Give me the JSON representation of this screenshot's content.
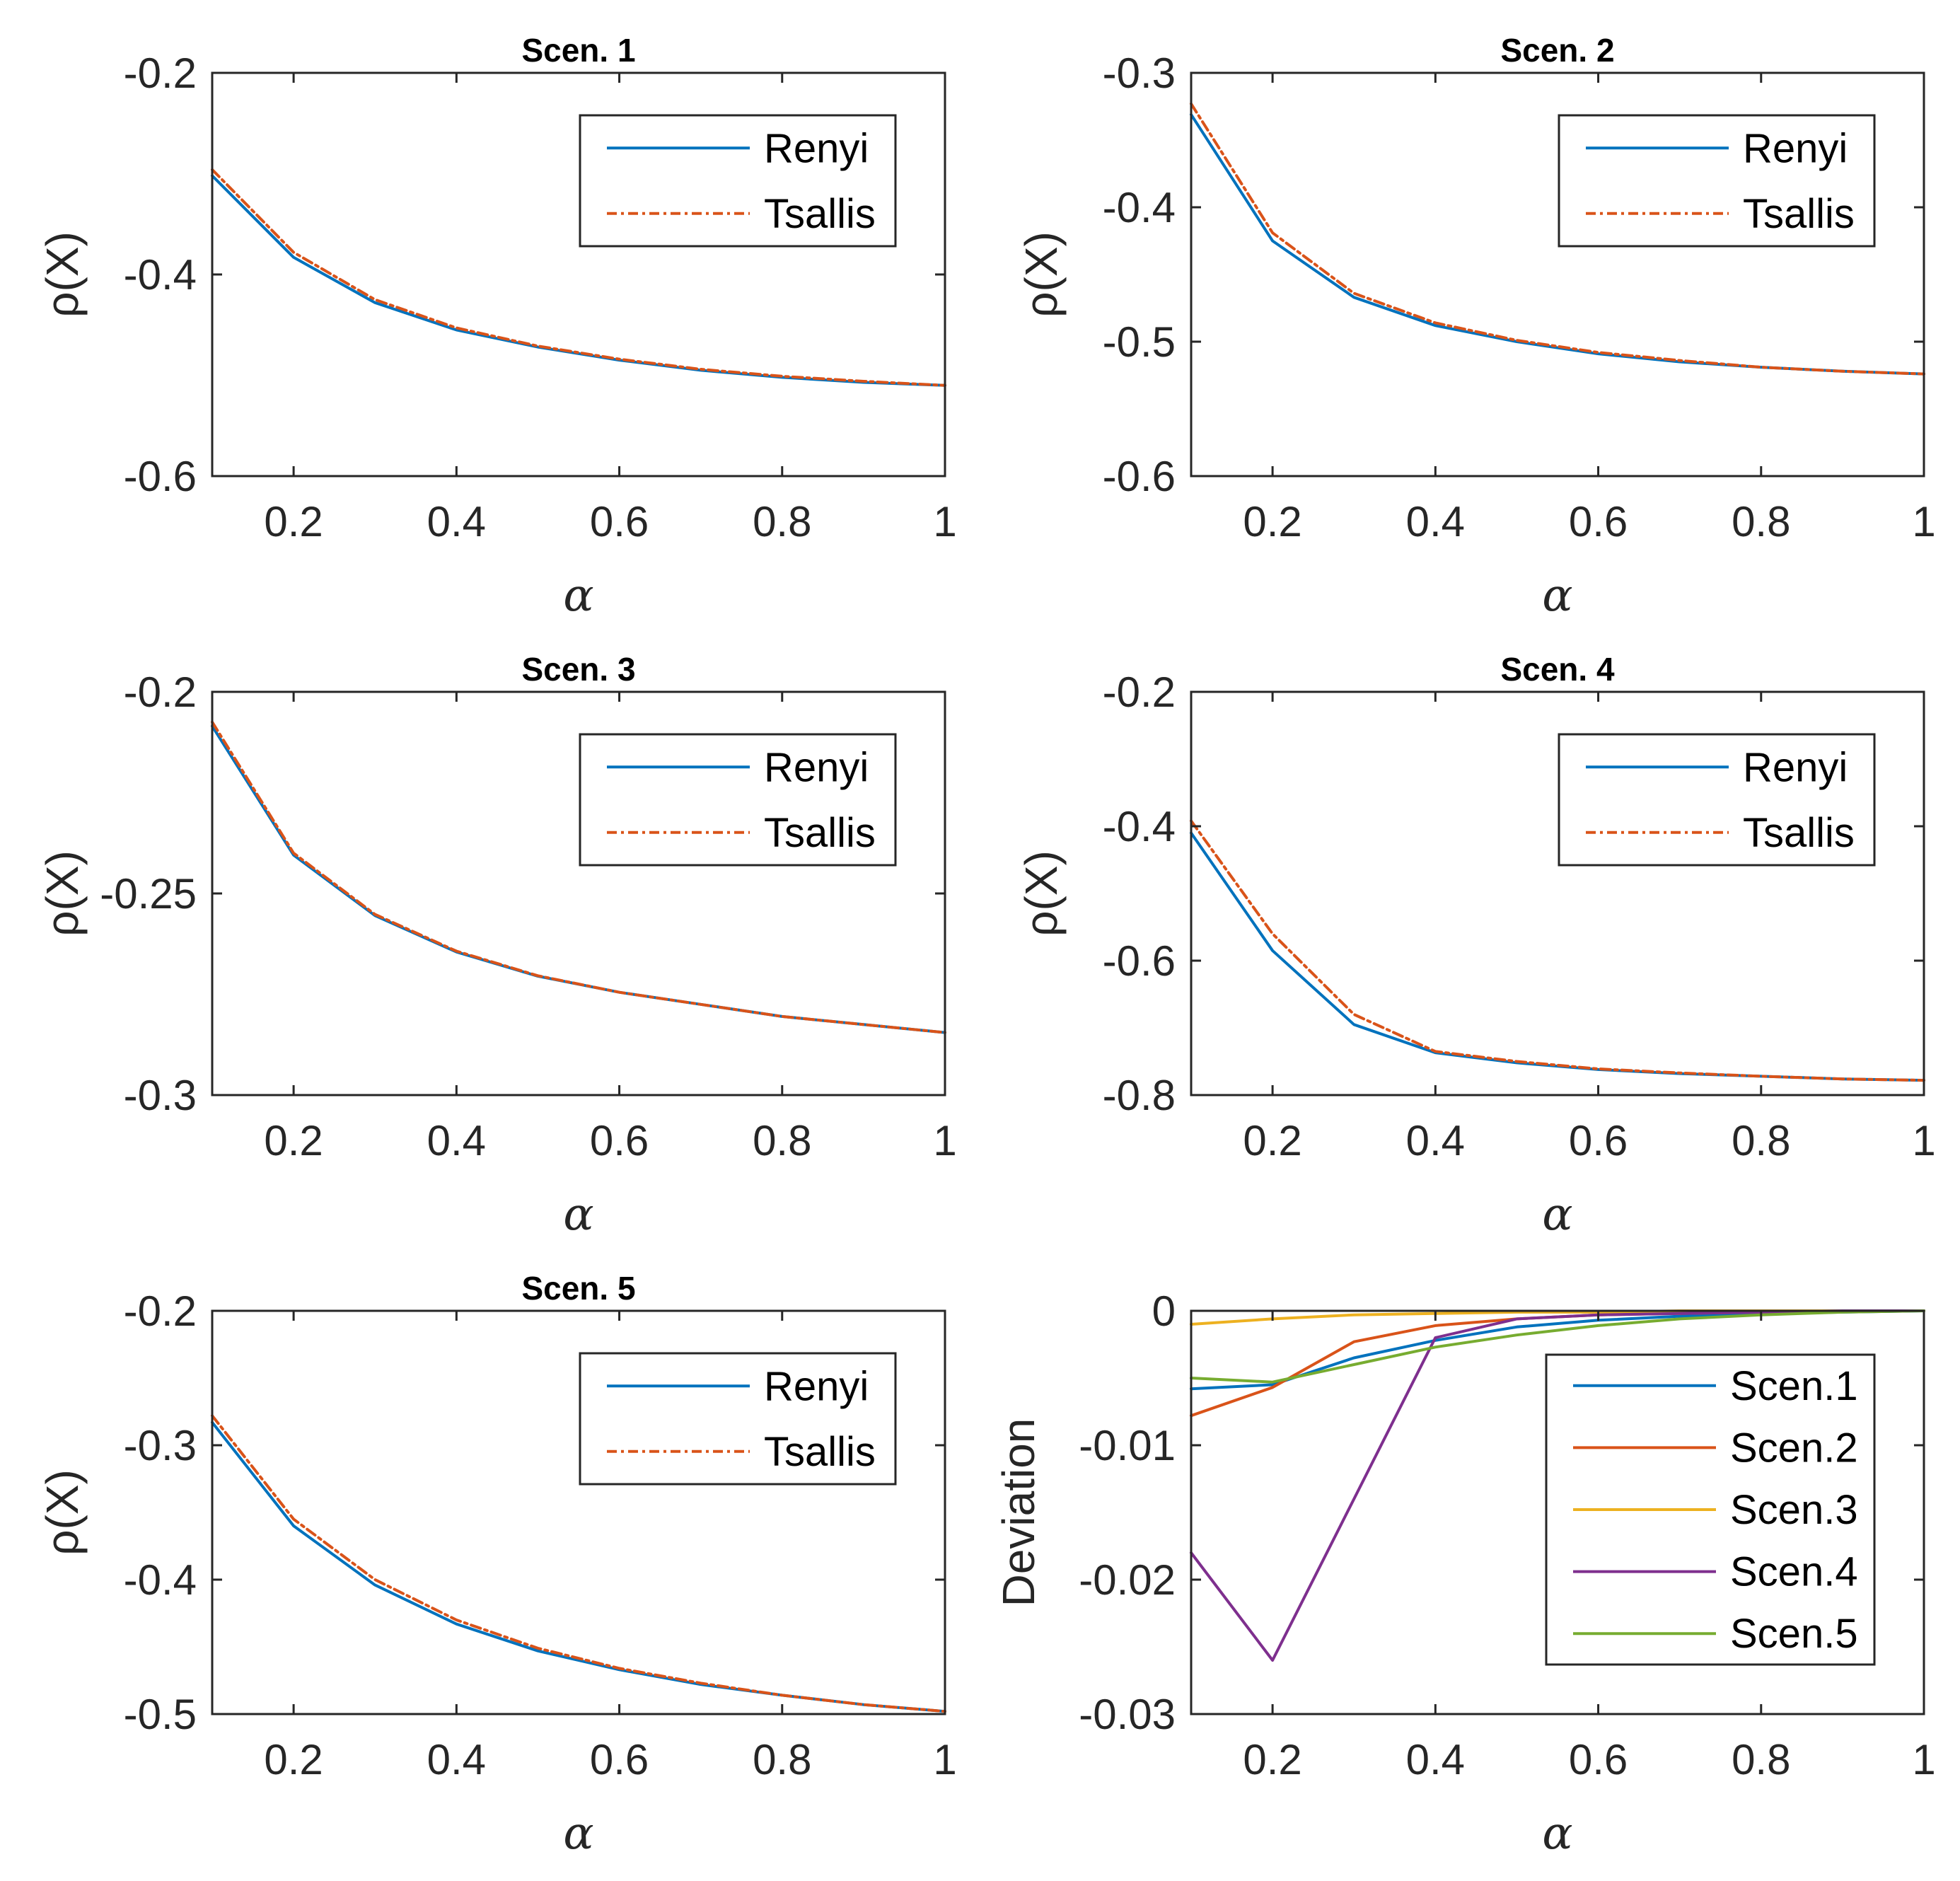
{
  "chart_data": [
    {
      "type": "line",
      "title": "Scen. 1",
      "xlabel": "α",
      "ylabel": "ρ(X)",
      "x": [
        0.1,
        0.2,
        0.3,
        0.4,
        0.5,
        0.6,
        0.7,
        0.8,
        0.9,
        1.0
      ],
      "xlim": [
        0.1,
        1
      ],
      "ylim": [
        -0.6,
        -0.2
      ],
      "xticks": [
        "0.2",
        "0.4",
        "0.6",
        "0.8",
        "1"
      ],
      "yticks": [
        "-0.2",
        "-0.4",
        "-0.6"
      ],
      "legend_position": "top-right",
      "series": [
        {
          "name": "Renyi",
          "color": "#0072BD",
          "style": "solid",
          "values": [
            -0.302,
            -0.383,
            -0.428,
            -0.455,
            -0.472,
            -0.485,
            -0.495,
            -0.502,
            -0.507,
            -0.51
          ]
        },
        {
          "name": "Tsallis",
          "color": "#D95319",
          "style": "dashdot",
          "values": [
            -0.296,
            -0.378,
            -0.425,
            -0.453,
            -0.471,
            -0.484,
            -0.494,
            -0.501,
            -0.506,
            -0.51
          ]
        }
      ]
    },
    {
      "type": "line",
      "title": "Scen. 2",
      "xlabel": "α",
      "ylabel": "ρ(X)",
      "x": [
        0.1,
        0.2,
        0.3,
        0.4,
        0.5,
        0.6,
        0.7,
        0.8,
        0.9,
        1.0
      ],
      "xlim": [
        0.1,
        1
      ],
      "ylim": [
        -0.6,
        -0.3
      ],
      "xticks": [
        "0.2",
        "0.4",
        "0.6",
        "0.8",
        "1"
      ],
      "yticks": [
        "-0.3",
        "-0.4",
        "-0.5",
        "-0.6"
      ],
      "legend_position": "top-right",
      "series": [
        {
          "name": "Renyi",
          "color": "#0072BD",
          "style": "solid",
          "values": [
            -0.331,
            -0.425,
            -0.467,
            -0.488,
            -0.5,
            -0.509,
            -0.515,
            -0.519,
            -0.522,
            -0.524
          ]
        },
        {
          "name": "Tsallis",
          "color": "#D95319",
          "style": "dashdot",
          "values": [
            -0.323,
            -0.419,
            -0.464,
            -0.486,
            -0.499,
            -0.508,
            -0.514,
            -0.519,
            -0.522,
            -0.524
          ]
        }
      ]
    },
    {
      "type": "line",
      "title": "Scen. 3",
      "xlabel": "α",
      "ylabel": "ρ(X)",
      "x": [
        0.1,
        0.2,
        0.3,
        0.4,
        0.5,
        0.6,
        0.7,
        0.8,
        0.9,
        1.0
      ],
      "xlim": [
        0.1,
        1
      ],
      "ylim": [
        -0.3,
        -0.2
      ],
      "xticks": [
        "0.2",
        "0.4",
        "0.6",
        "0.8",
        "1"
      ],
      "yticks": [
        "-0.2",
        "-0.25",
        "-0.3"
      ],
      "legend_position": "top-right",
      "series": [
        {
          "name": "Renyi",
          "color": "#0072BD",
          "style": "solid",
          "values": [
            -0.2085,
            -0.2405,
            -0.2555,
            -0.2645,
            -0.2705,
            -0.2745,
            -0.2775,
            -0.2805,
            -0.2825,
            -0.2845
          ]
        },
        {
          "name": "Tsallis",
          "color": "#D95319",
          "style": "dashdot",
          "values": [
            -0.2075,
            -0.24,
            -0.2552,
            -0.2643,
            -0.2704,
            -0.2745,
            -0.2775,
            -0.2805,
            -0.2825,
            -0.2845
          ]
        }
      ]
    },
    {
      "type": "line",
      "title": "Scen. 4",
      "xlabel": "α",
      "ylabel": "ρ(X)",
      "x": [
        0.1,
        0.2,
        0.3,
        0.4,
        0.5,
        0.6,
        0.7,
        0.8,
        0.9,
        1.0
      ],
      "xlim": [
        0.1,
        1
      ],
      "ylim": [
        -0.8,
        -0.2
      ],
      "xticks": [
        "0.2",
        "0.4",
        "0.6",
        "0.8",
        "1"
      ],
      "yticks": [
        "-0.2",
        "-0.4",
        "-0.6",
        "-0.8"
      ],
      "legend_position": "top-right",
      "series": [
        {
          "name": "Renyi",
          "color": "#0072BD",
          "style": "solid",
          "values": [
            -0.41,
            -0.585,
            -0.695,
            -0.737,
            -0.752,
            -0.762,
            -0.768,
            -0.772,
            -0.776,
            -0.778
          ]
        },
        {
          "name": "Tsallis",
          "color": "#D95319",
          "style": "dashdot",
          "values": [
            -0.392,
            -0.56,
            -0.68,
            -0.735,
            -0.75,
            -0.761,
            -0.767,
            -0.772,
            -0.776,
            -0.778
          ]
        }
      ]
    },
    {
      "type": "line",
      "title": "Scen. 5",
      "xlabel": "α",
      "ylabel": "ρ(X)",
      "x": [
        0.1,
        0.2,
        0.3,
        0.4,
        0.5,
        0.6,
        0.7,
        0.8,
        0.9,
        1.0
      ],
      "xlim": [
        0.1,
        1
      ],
      "ylim": [
        -0.5,
        -0.2
      ],
      "xticks": [
        "0.2",
        "0.4",
        "0.6",
        "0.8",
        "1"
      ],
      "yticks": [
        "-0.2",
        "-0.3",
        "-0.4",
        "-0.5"
      ],
      "legend_position": "top-right",
      "series": [
        {
          "name": "Renyi",
          "color": "#0072BD",
          "style": "solid",
          "values": [
            -0.283,
            -0.36,
            -0.404,
            -0.433,
            -0.453,
            -0.467,
            -0.478,
            -0.486,
            -0.493,
            -0.498
          ]
        },
        {
          "name": "Tsallis",
          "color": "#D95319",
          "style": "dashdot",
          "values": [
            -0.278,
            -0.355,
            -0.4,
            -0.43,
            -0.451,
            -0.466,
            -0.477,
            -0.486,
            -0.493,
            -0.498
          ]
        }
      ]
    },
    {
      "type": "line",
      "title": "",
      "xlabel": "α",
      "ylabel": "Deviation",
      "x": [
        0.1,
        0.2,
        0.3,
        0.4,
        0.5,
        0.6,
        0.7,
        0.8,
        0.9,
        1.0
      ],
      "xlim": [
        0.1,
        1
      ],
      "ylim": [
        -0.03,
        0
      ],
      "xticks": [
        "0.2",
        "0.4",
        "0.6",
        "0.8",
        "1"
      ],
      "yticks": [
        "0",
        "-0.01",
        "-0.02",
        "-0.03"
      ],
      "legend_position": "bottom-right",
      "series": [
        {
          "name": "Scen.1",
          "color": "#0072BD",
          "style": "solid",
          "values": [
            -0.0058,
            -0.0055,
            -0.0035,
            -0.0022,
            -0.0012,
            -0.0007,
            -0.0004,
            -0.0002,
            -0.0001,
            0
          ]
        },
        {
          "name": "Scen.2",
          "color": "#D95319",
          "style": "solid",
          "values": [
            -0.0078,
            -0.0057,
            -0.0023,
            -0.0011,
            -0.0006,
            -0.0003,
            -0.0002,
            -0.0001,
            0,
            0
          ]
        },
        {
          "name": "Scen.3",
          "color": "#EDB120",
          "style": "solid",
          "values": [
            -0.001,
            -0.0006,
            -0.0003,
            -0.0002,
            -0.0001,
            -0.0001,
            0,
            0,
            0,
            0
          ]
        },
        {
          "name": "Scen.4",
          "color": "#7E2F8E",
          "style": "solid",
          "values": [
            -0.018,
            -0.026,
            -0.014,
            -0.002,
            -0.0006,
            -0.0003,
            -0.0002,
            -0.0001,
            0,
            0
          ]
        },
        {
          "name": "Scen.5",
          "color": "#77AC30",
          "style": "solid",
          "values": [
            -0.005,
            -0.0053,
            -0.004,
            -0.0027,
            -0.0018,
            -0.0011,
            -0.0006,
            -0.0003,
            -0.0001,
            0
          ]
        }
      ]
    }
  ]
}
